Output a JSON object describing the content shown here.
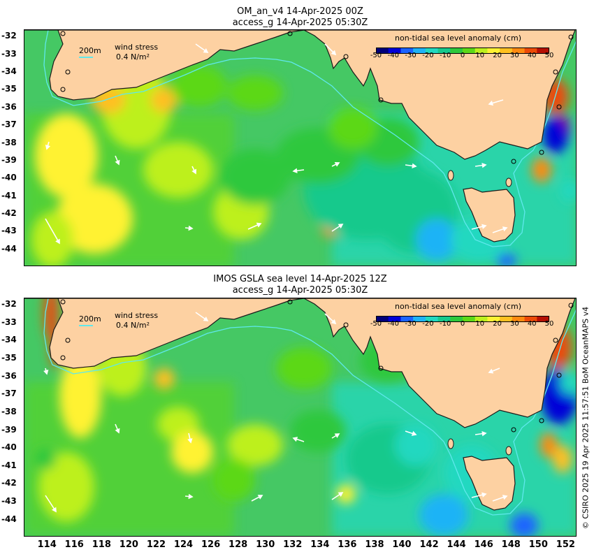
{
  "panels": [
    {
      "title1": "OM_an_v4  14-Apr-2025 00Z",
      "title2": "access_g 14-Apr-2025 05:30Z"
    },
    {
      "title1": "IMOS GSLA sea level  14-Apr-2025 12Z",
      "title2": "access_g 14-Apr-2025 05:30Z"
    }
  ],
  "colorbar": {
    "title": "non-tidal sea level anomaly (cm)",
    "ticks": [
      "-50",
      "-40",
      "-30",
      "-20",
      "-10",
      "0",
      "10",
      "20",
      "30",
      "40",
      "50"
    ],
    "colors": [
      "#00007a",
      "#0000d8",
      "#1b63ff",
      "#1fb3f6",
      "#22d8c0",
      "#17c98c",
      "#2ec83c",
      "#5cd818",
      "#bdf01f",
      "#fff232",
      "#ffc020",
      "#ff8a10",
      "#ec4a08",
      "#b51004"
    ]
  },
  "legend": {
    "depth_label": "200m",
    "stress_label": "wind stress",
    "stress_value": "0.4 N/m²"
  },
  "lat_labels": [
    "-32",
    "-33",
    "-34",
    "-35",
    "-36",
    "-37",
    "-38",
    "-39",
    "-40",
    "-41",
    "-42",
    "-43",
    "-44"
  ],
  "lon_labels": [
    "114",
    "116",
    "118",
    "120",
    "122",
    "124",
    "126",
    "128",
    "130",
    "132",
    "134",
    "136",
    "138",
    "140",
    "142",
    "144",
    "146",
    "148",
    "150",
    "152"
  ],
  "credit": "© CSIRO 2025   19 Apr 2025 11:57:51 BoM OceanMAPS v4",
  "colors": {
    "land": "#fdd1a2",
    "ocean_base": "#45c864",
    "coast": "#1a1a1a",
    "shelf": "#5fe8ec",
    "arrow": "#ffffff"
  }
}
